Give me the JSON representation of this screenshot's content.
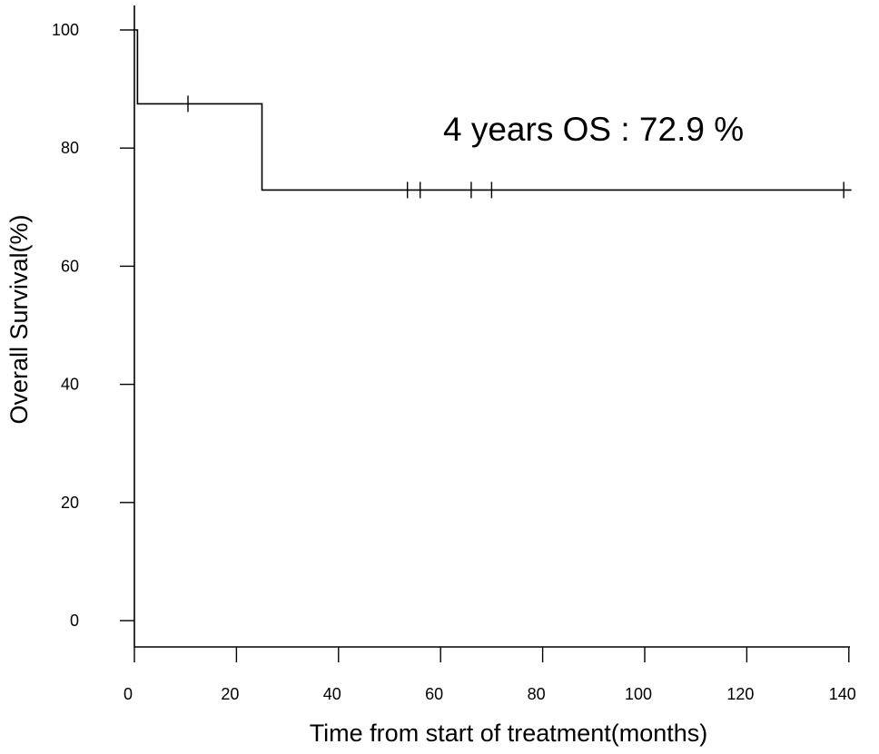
{
  "chart_data": {
    "type": "line",
    "subtype": "kaplan-meier-step",
    "xlabel": "Time from start of treatment(months)",
    "ylabel": "Overall Survival(%)",
    "xlim": [
      0,
      142
    ],
    "ylim": [
      -4,
      104
    ],
    "x_ticks": [
      0,
      20,
      40,
      60,
      80,
      100,
      120,
      140
    ],
    "y_ticks": [
      0,
      20,
      40,
      60,
      80,
      100
    ],
    "grid": false,
    "legend": "none",
    "annotation": "4 years OS : 72.9 %",
    "series": [
      {
        "steps": [
          {
            "x": 0,
            "y": 100
          },
          {
            "x": 0.6,
            "y": 100
          },
          {
            "x": 0.6,
            "y": 87.5
          },
          {
            "x": 25,
            "y": 87.5
          },
          {
            "x": 25,
            "y": 72.9
          },
          {
            "x": 140.5,
            "y": 72.9
          }
        ],
        "censored": [
          {
            "x": 10.5,
            "y": 87.5
          },
          {
            "x": 53.5,
            "y": 72.9
          },
          {
            "x": 56,
            "y": 72.9
          },
          {
            "x": 66,
            "y": 72.9
          },
          {
            "x": 70,
            "y": 72.9
          },
          {
            "x": 139,
            "y": 72.9
          }
        ]
      }
    ]
  }
}
